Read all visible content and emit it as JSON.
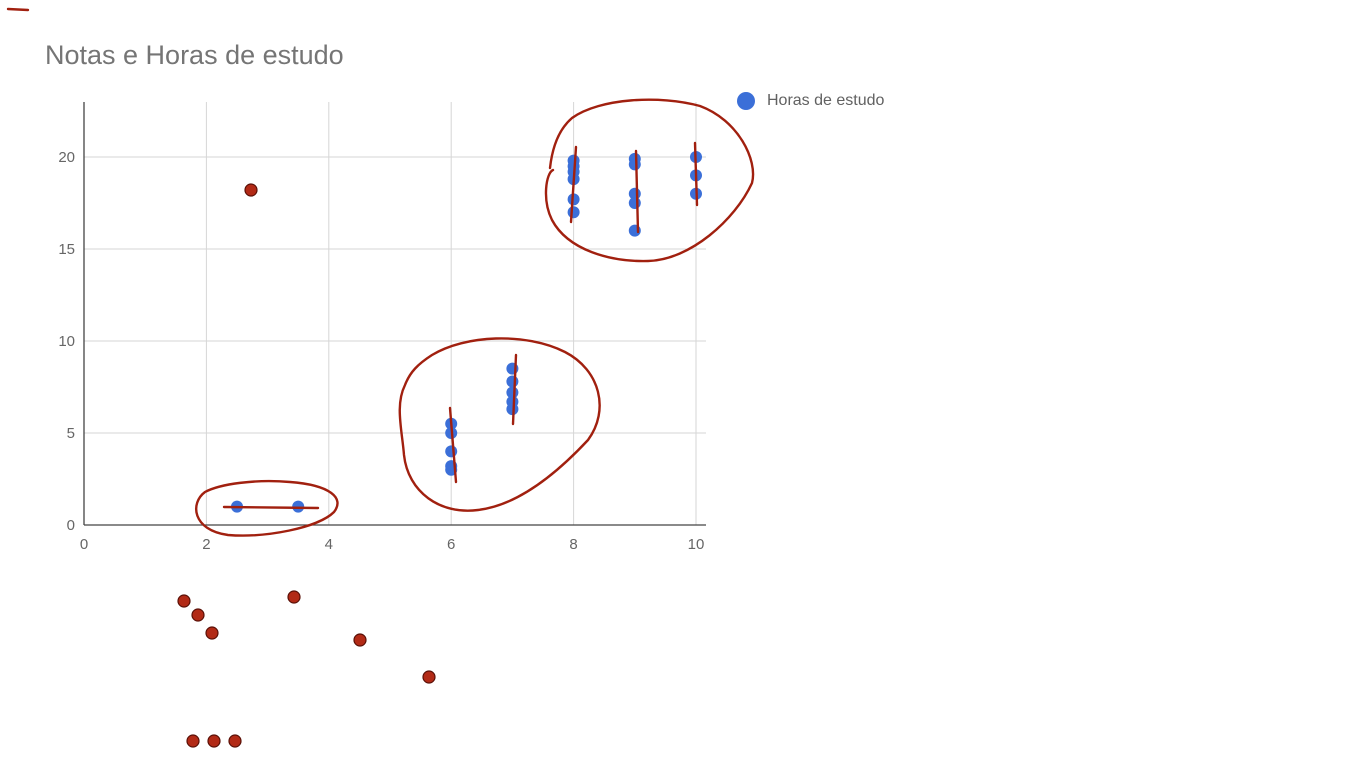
{
  "chart_data": {
    "type": "scatter",
    "title": "Notas e Horas de estudo",
    "xlabel": "",
    "ylabel": "",
    "xlim": [
      0,
      10
    ],
    "ylim": [
      0,
      23
    ],
    "xticks": [
      0,
      2,
      4,
      6,
      8,
      10
    ],
    "yticks": [
      0,
      5,
      10,
      15,
      20
    ],
    "grid": true,
    "legend_position": "right",
    "series": [
      {
        "name": "Horas de estudo",
        "color": "#3b6fd8",
        "points": [
          {
            "x": 2.5,
            "y": 1
          },
          {
            "x": 3.5,
            "y": 1
          },
          {
            "x": 6,
            "y": 5.5
          },
          {
            "x": 6,
            "y": 5
          },
          {
            "x": 6,
            "y": 4
          },
          {
            "x": 6,
            "y": 3.2
          },
          {
            "x": 6,
            "y": 3
          },
          {
            "x": 7,
            "y": 8.5
          },
          {
            "x": 7,
            "y": 7.8
          },
          {
            "x": 7,
            "y": 7.2
          },
          {
            "x": 7,
            "y": 6.7
          },
          {
            "x": 7,
            "y": 6.3
          },
          {
            "x": 8,
            "y": 19.8
          },
          {
            "x": 8,
            "y": 19.5
          },
          {
            "x": 8,
            "y": 19.2
          },
          {
            "x": 8,
            "y": 18.8
          },
          {
            "x": 8,
            "y": 17.7
          },
          {
            "x": 8,
            "y": 17
          },
          {
            "x": 9,
            "y": 19.9
          },
          {
            "x": 9,
            "y": 19.6
          },
          {
            "x": 9,
            "y": 18
          },
          {
            "x": 9,
            "y": 17.5
          },
          {
            "x": 9,
            "y": 16
          },
          {
            "x": 10,
            "y": 20
          },
          {
            "x": 10,
            "y": 19
          },
          {
            "x": 10,
            "y": 18
          }
        ]
      }
    ]
  },
  "annotations": {
    "color": "#a1200f",
    "dot_fill": "#b22a16"
  }
}
